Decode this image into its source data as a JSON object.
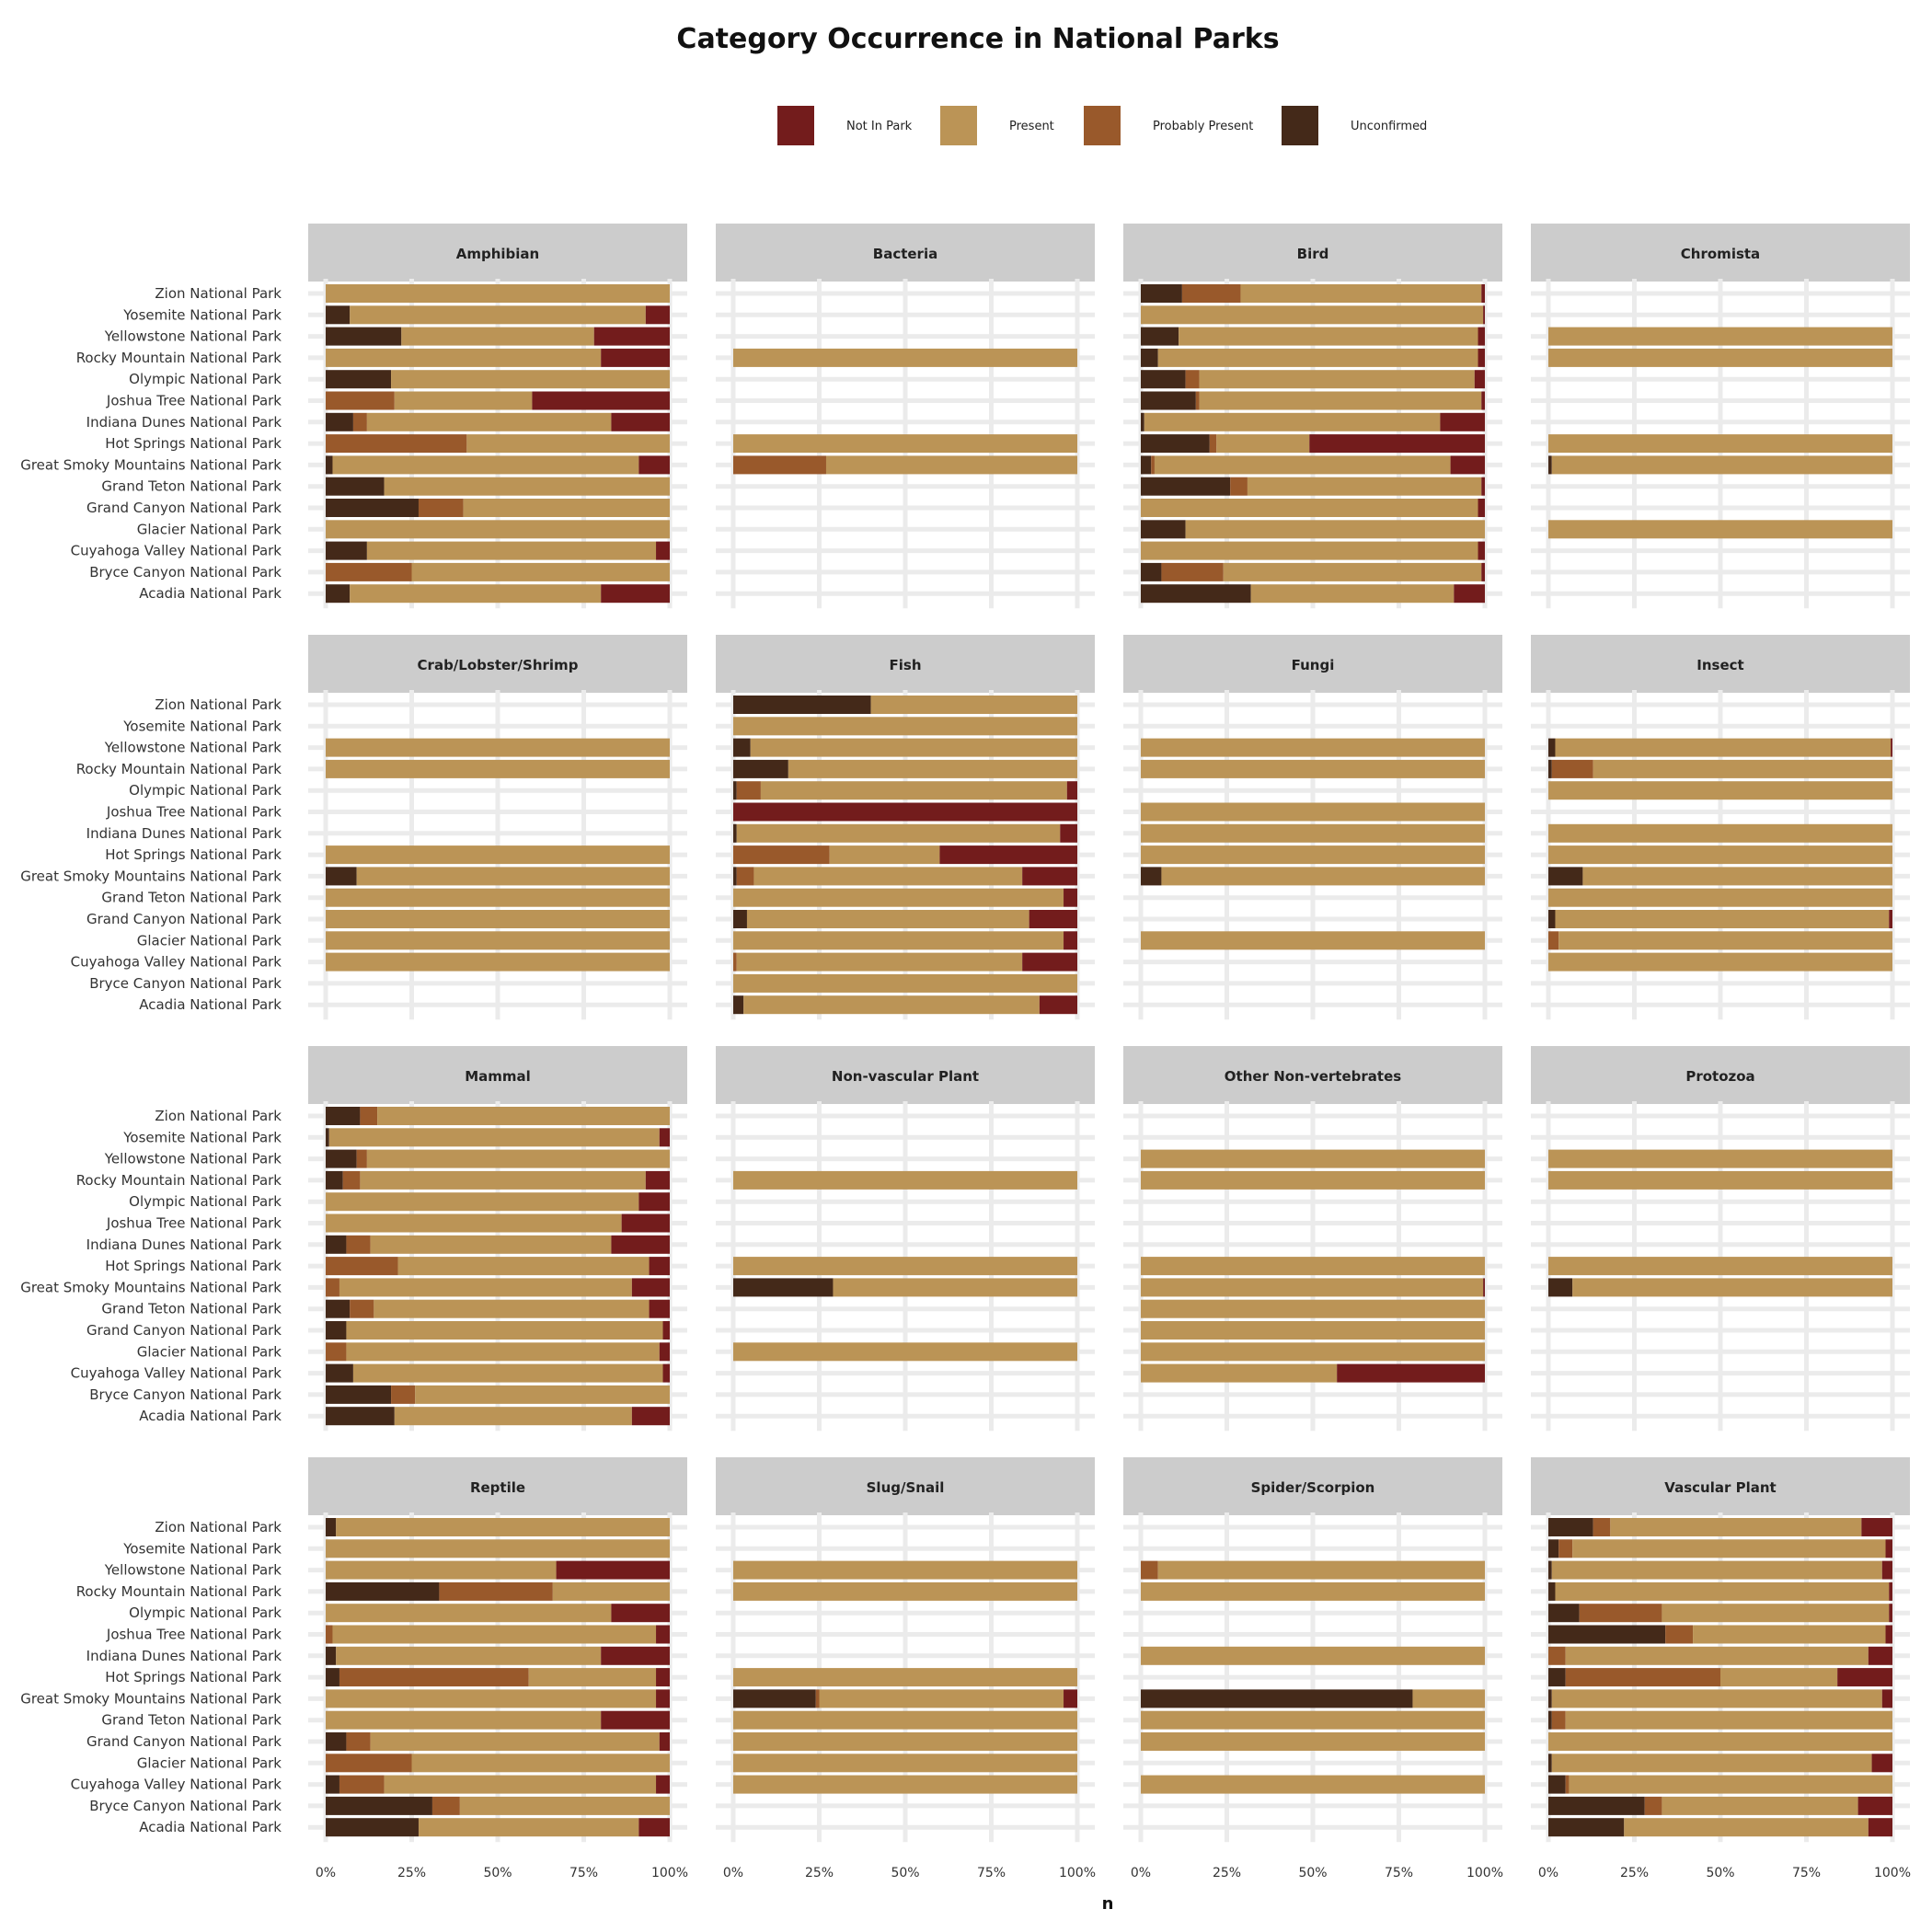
{
  "chart_data": {
    "type": "bar",
    "orientation": "horizontal",
    "stacked": "percent",
    "title": "Category Occurrence in National Parks",
    "xlabel": "n",
    "ylabel": "",
    "xlim": [
      0,
      1
    ],
    "x_ticks": [
      "0%",
      "25%",
      "50%",
      "75%",
      "100%"
    ],
    "legend_position": "top",
    "grid": true,
    "legend": [
      {
        "key": "nip",
        "label": "Not In Park",
        "color": "#731c1c"
      },
      {
        "key": "pr",
        "label": "Present",
        "color": "#bb9456"
      },
      {
        "key": "pp",
        "label": "Probably Present",
        "color": "#99592b"
      },
      {
        "key": "un",
        "label": "Unconfirmed",
        "color": "#442919"
      }
    ],
    "stack_order": [
      "un",
      "pp",
      "pr",
      "nip"
    ],
    "parks": [
      "Zion National Park",
      "Yosemite National Park",
      "Yellowstone National Park",
      "Rocky Mountain National Park",
      "Olympic National Park",
      "Joshua Tree National Park",
      "Indiana Dunes National Park",
      "Hot Springs National Park",
      "Great Smoky Mountains National Park",
      "Grand Teton National Park",
      "Grand Canyon National Park",
      "Glacier National Park",
      "Cuyahoga Valley National Park",
      "Bryce Canyon National Park",
      "Acadia National Park"
    ],
    "facets": [
      {
        "name": "Amphibian",
        "bars": [
          [
            0,
            0,
            1,
            0
          ],
          [
            0.07,
            0,
            0.86,
            0.07
          ],
          [
            0.22,
            0,
            0.56,
            0.22
          ],
          [
            0,
            0,
            0.8,
            0.2
          ],
          [
            0.19,
            0,
            0.81,
            0
          ],
          [
            0,
            0.2,
            0.4,
            0.4
          ],
          [
            0.08,
            0.04,
            0.71,
            0.17
          ],
          [
            0,
            0.41,
            0.59,
            0
          ],
          [
            0.02,
            0,
            0.89,
            0.09
          ],
          [
            0.17,
            0,
            0.83,
            0
          ],
          [
            0.27,
            0.13,
            0.6,
            0
          ],
          [
            0,
            0,
            1,
            0
          ],
          [
            0.12,
            0,
            0.84,
            0.04
          ],
          [
            0,
            0.25,
            0.75,
            0
          ],
          [
            0.07,
            0,
            0.73,
            0.2
          ]
        ]
      },
      {
        "name": "Bacteria",
        "bars": [
          null,
          null,
          null,
          [
            0,
            0,
            1,
            0
          ],
          null,
          null,
          null,
          [
            0,
            0,
            1,
            0
          ],
          [
            0,
            0.27,
            0.73,
            0
          ],
          null,
          null,
          null,
          null,
          null,
          null
        ]
      },
      {
        "name": "Bird",
        "bars": [
          [
            0.12,
            0.17,
            0.7,
            0.01
          ],
          [
            0,
            0,
            0.995,
            0.005
          ],
          [
            0.11,
            0,
            0.87,
            0.02
          ],
          [
            0.05,
            0,
            0.93,
            0.02
          ],
          [
            0.13,
            0.04,
            0.8,
            0.03
          ],
          [
            0.16,
            0.01,
            0.82,
            0.01
          ],
          [
            0.01,
            0,
            0.86,
            0.13
          ],
          [
            0.2,
            0.02,
            0.27,
            0.51
          ],
          [
            0.03,
            0.01,
            0.86,
            0.1
          ],
          [
            0.26,
            0.05,
            0.68,
            0.01
          ],
          [
            0,
            0,
            0.98,
            0.02
          ],
          [
            0.13,
            0,
            0.87,
            0
          ],
          [
            0,
            0,
            0.98,
            0.02
          ],
          [
            0.06,
            0.18,
            0.75,
            0.01
          ],
          [
            0.32,
            0,
            0.59,
            0.09
          ]
        ]
      },
      {
        "name": "Chromista",
        "bars": [
          null,
          null,
          [
            0,
            0,
            1,
            0
          ],
          [
            0,
            0,
            1,
            0
          ],
          null,
          null,
          null,
          [
            0,
            0,
            1,
            0
          ],
          [
            0.01,
            0,
            0.99,
            0
          ],
          null,
          null,
          [
            0,
            0,
            1,
            0
          ],
          null,
          null,
          null
        ]
      },
      {
        "name": "Crab/Lobster/Shrimp",
        "bars": [
          null,
          null,
          [
            0,
            0,
            1,
            0
          ],
          [
            0,
            0,
            1,
            0
          ],
          null,
          null,
          null,
          [
            0,
            0,
            1,
            0
          ],
          [
            0.09,
            0,
            0.91,
            0
          ],
          [
            0,
            0,
            1,
            0
          ],
          [
            0,
            0,
            1,
            0
          ],
          [
            0,
            0,
            1,
            0
          ],
          [
            0,
            0,
            1,
            0
          ],
          null,
          null
        ]
      },
      {
        "name": "Fish",
        "bars": [
          [
            0.4,
            0,
            0.6,
            0
          ],
          [
            0,
            0,
            1,
            0
          ],
          [
            0.05,
            0,
            0.95,
            0
          ],
          [
            0.16,
            0,
            0.84,
            0
          ],
          [
            0.01,
            0.07,
            0.89,
            0.03
          ],
          [
            0,
            0,
            0,
            1
          ],
          [
            0.01,
            0,
            0.94,
            0.05
          ],
          [
            0,
            0.28,
            0.32,
            0.4
          ],
          [
            0.01,
            0.05,
            0.78,
            0.16
          ],
          [
            0,
            0,
            0.96,
            0.04
          ],
          [
            0.04,
            0,
            0.82,
            0.14
          ],
          [
            0,
            0,
            0.96,
            0.04
          ],
          [
            0,
            0.01,
            0.83,
            0.16
          ],
          [
            0,
            0,
            1,
            0
          ],
          [
            0.03,
            0,
            0.86,
            0.11
          ]
        ]
      },
      {
        "name": "Fungi",
        "bars": [
          null,
          null,
          [
            0,
            0,
            1,
            0
          ],
          [
            0,
            0,
            1,
            0
          ],
          null,
          [
            0,
            0,
            1,
            0
          ],
          [
            0,
            0,
            1,
            0
          ],
          [
            0,
            0,
            1,
            0
          ],
          [
            0.06,
            0,
            0.94,
            0
          ],
          null,
          null,
          [
            0,
            0,
            1,
            0
          ],
          null,
          null,
          null
        ]
      },
      {
        "name": "Insect",
        "bars": [
          null,
          null,
          [
            0.02,
            0,
            0.975,
            0.005
          ],
          [
            0.01,
            0.12,
            0.87,
            0
          ],
          [
            0,
            0,
            1,
            0
          ],
          null,
          [
            0,
            0,
            1,
            0
          ],
          [
            0,
            0,
            1,
            0
          ],
          [
            0.1,
            0,
            0.9,
            0
          ],
          [
            0,
            0,
            1,
            0
          ],
          [
            0.02,
            0,
            0.97,
            0.01
          ],
          [
            0,
            0.03,
            0.97,
            0
          ],
          [
            0,
            0,
            1,
            0
          ],
          null,
          null
        ]
      },
      {
        "name": "Mammal",
        "bars": [
          [
            0.1,
            0.05,
            0.85,
            0
          ],
          [
            0.01,
            0,
            0.96,
            0.03
          ],
          [
            0.09,
            0.03,
            0.88,
            0
          ],
          [
            0.05,
            0.05,
            0.83,
            0.07
          ],
          [
            0,
            0,
            0.91,
            0.09
          ],
          [
            0,
            0,
            0.86,
            0.14
          ],
          [
            0.06,
            0.07,
            0.7,
            0.17
          ],
          [
            0,
            0.21,
            0.73,
            0.06
          ],
          [
            0,
            0.04,
            0.85,
            0.11
          ],
          [
            0.07,
            0.07,
            0.8,
            0.06
          ],
          [
            0.06,
            0,
            0.92,
            0.02
          ],
          [
            0,
            0.06,
            0.91,
            0.03
          ],
          [
            0.08,
            0,
            0.9,
            0.02
          ],
          [
            0.19,
            0.07,
            0.74,
            0
          ],
          [
            0.2,
            0,
            0.69,
            0.11
          ]
        ]
      },
      {
        "name": "Non-vascular Plant",
        "bars": [
          null,
          null,
          null,
          [
            0,
            0,
            1,
            0
          ],
          null,
          null,
          null,
          [
            0,
            0,
            1,
            0
          ],
          [
            0.29,
            0,
            0.71,
            0
          ],
          null,
          null,
          [
            0,
            0,
            1,
            0
          ],
          null,
          null,
          null
        ]
      },
      {
        "name": "Other Non-vertebrates",
        "bars": [
          null,
          null,
          [
            0,
            0,
            1,
            0
          ],
          [
            0,
            0,
            1,
            0
          ],
          null,
          null,
          null,
          [
            0,
            0,
            1,
            0
          ],
          [
            0,
            0,
            0.995,
            0.005
          ],
          [
            0,
            0,
            1,
            0
          ],
          [
            0,
            0,
            1,
            0
          ],
          [
            0,
            0,
            1,
            0
          ],
          [
            0,
            0,
            0.57,
            0.43
          ],
          null,
          null
        ]
      },
      {
        "name": "Protozoa",
        "bars": [
          null,
          null,
          [
            0,
            0,
            1,
            0
          ],
          [
            0,
            0,
            1,
            0
          ],
          null,
          null,
          null,
          [
            0,
            0,
            1,
            0
          ],
          [
            0.07,
            0,
            0.93,
            0
          ],
          null,
          null,
          null,
          null,
          null,
          null
        ]
      },
      {
        "name": "Reptile",
        "bars": [
          [
            0.03,
            0,
            0.97,
            0
          ],
          [
            0,
            0,
            1,
            0
          ],
          [
            0,
            0,
            0.67,
            0.33
          ],
          [
            0.33,
            0.33,
            0.34,
            0
          ],
          [
            0,
            0,
            0.83,
            0.17
          ],
          [
            0,
            0.02,
            0.94,
            0.04
          ],
          [
            0.03,
            0,
            0.77,
            0.2
          ],
          [
            0.04,
            0.55,
            0.37,
            0.04
          ],
          [
            0,
            0,
            0.96,
            0.04
          ],
          [
            0,
            0,
            0.8,
            0.2
          ],
          [
            0.06,
            0.07,
            0.84,
            0.03
          ],
          [
            0,
            0.25,
            0.75,
            0
          ],
          [
            0.04,
            0.13,
            0.79,
            0.04
          ],
          [
            0.31,
            0.08,
            0.61,
            0
          ],
          [
            0.27,
            0,
            0.64,
            0.09
          ]
        ]
      },
      {
        "name": "Slug/Snail",
        "bars": [
          null,
          null,
          [
            0,
            0,
            1,
            0
          ],
          [
            0,
            0,
            1,
            0
          ],
          null,
          null,
          null,
          [
            0,
            0,
            1,
            0
          ],
          [
            0.24,
            0.01,
            0.71,
            0.04
          ],
          [
            0,
            0,
            1,
            0
          ],
          [
            0,
            0,
            1,
            0
          ],
          [
            0,
            0,
            1,
            0
          ],
          [
            0,
            0,
            1,
            0
          ],
          null,
          null
        ]
      },
      {
        "name": "Spider/Scorpion",
        "bars": [
          null,
          null,
          [
            0,
            0.05,
            0.95,
            0
          ],
          [
            0,
            0,
            1,
            0
          ],
          null,
          null,
          [
            0,
            0,
            1,
            0
          ],
          null,
          [
            0.79,
            0,
            0.21,
            0
          ],
          [
            0,
            0,
            1,
            0
          ],
          [
            0,
            0,
            1,
            0
          ],
          null,
          [
            0,
            0,
            1,
            0
          ],
          null,
          null
        ]
      },
      {
        "name": "Vascular Plant",
        "bars": [
          [
            0.13,
            0.05,
            0.73,
            0.09
          ],
          [
            0.03,
            0.04,
            0.91,
            0.02
          ],
          [
            0.01,
            0,
            0.96,
            0.03
          ],
          [
            0.02,
            0,
            0.97,
            0.01
          ],
          [
            0.09,
            0.24,
            0.66,
            0.01
          ],
          [
            0.34,
            0.08,
            0.56,
            0.02
          ],
          [
            0,
            0.05,
            0.88,
            0.07
          ],
          [
            0.05,
            0.45,
            0.34,
            0.16
          ],
          [
            0.01,
            0,
            0.96,
            0.03
          ],
          [
            0.01,
            0.04,
            0.95,
            0
          ],
          [
            0,
            0,
            1,
            0
          ],
          [
            0.01,
            0,
            0.93,
            0.06
          ],
          [
            0.05,
            0.01,
            0.94,
            0
          ],
          [
            0.28,
            0.05,
            0.57,
            0.1
          ],
          [
            0.22,
            0,
            0.71,
            0.07
          ]
        ]
      }
    ]
  }
}
